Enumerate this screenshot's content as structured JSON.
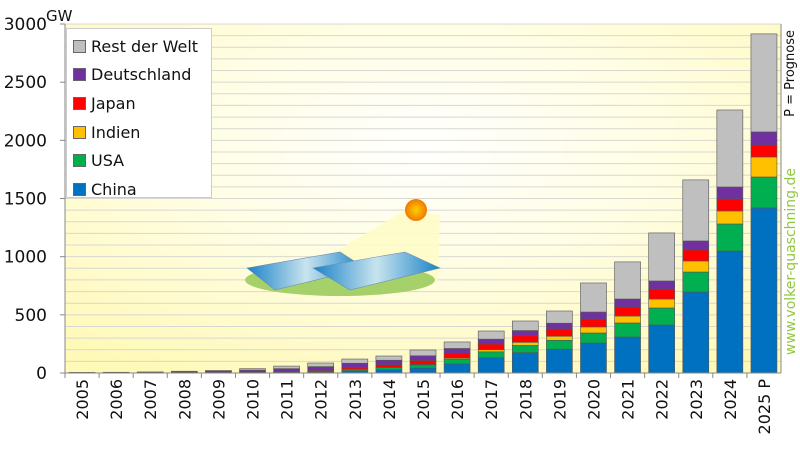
{
  "chart_data": {
    "type": "bar",
    "stacked": true,
    "ylabel": "GW",
    "ylim": [
      0,
      3000
    ],
    "yticks": [
      0,
      500,
      1000,
      1500,
      2000,
      2500,
      3000
    ],
    "grid": true,
    "legend_position": "top-left",
    "categories": [
      "2005",
      "2006",
      "2007",
      "2008",
      "2009",
      "2010",
      "2011",
      "2012",
      "2013",
      "2014",
      "2015",
      "2016",
      "2017",
      "2018",
      "2019",
      "2020",
      "2021",
      "2022",
      "2023",
      "2024",
      "2025 P"
    ],
    "series": [
      {
        "name": "China",
        "color": "#0070c0",
        "values": [
          0,
          0,
          0.1,
          0.1,
          0.3,
          0.8,
          3,
          7,
          20,
          28,
          43,
          78,
          131,
          175,
          205,
          258,
          310,
          413,
          696,
          1049,
          1419
        ]
      },
      {
        "name": "USA",
        "color": "#00b050",
        "values": [
          0.5,
          0.6,
          0.8,
          1.2,
          1.6,
          2.5,
          4,
          7,
          12,
          18,
          26,
          41,
          51,
          62,
          76,
          86,
          120,
          146,
          172,
          232,
          266
        ]
      },
      {
        "name": "Indien",
        "color": "#ffc000",
        "values": [
          0,
          0,
          0,
          0,
          0,
          0.1,
          0.5,
          1,
          2,
          3,
          5,
          9,
          18,
          27,
          35,
          52,
          60,
          77,
          95,
          112,
          172
        ]
      },
      {
        "name": "Japan",
        "color": "#ff0000",
        "values": [
          1.4,
          1.7,
          1.9,
          2.1,
          2.6,
          3.6,
          5,
          7,
          14,
          23,
          34,
          42,
          49,
          56,
          63,
          68,
          78,
          86,
          95,
          103,
          103
        ]
      },
      {
        "name": "Deutschland",
        "color": "#7030a0",
        "values": [
          2,
          2.9,
          4.2,
          6,
          10.6,
          18,
          25,
          33,
          36,
          38,
          40,
          41,
          42,
          45,
          49,
          60,
          68,
          69,
          77,
          103,
          112
        ]
      },
      {
        "name": "Rest der Welt",
        "color": "#bfbfbf",
        "values": [
          1.1,
          1.3,
          2,
          6,
          7,
          12,
          22,
          31,
          36,
          36,
          50,
          56,
          70,
          82,
          105,
          250,
          319,
          413,
          525,
          662,
          843
        ]
      }
    ]
  },
  "legend_order": [
    "Rest der Welt",
    "Deutschland",
    "Japan",
    "Indien",
    "USA",
    "China"
  ],
  "side_text": {
    "note": "P = Prognose",
    "website": "www.volker-quaschning.de",
    "website_color": "#92c83e"
  }
}
